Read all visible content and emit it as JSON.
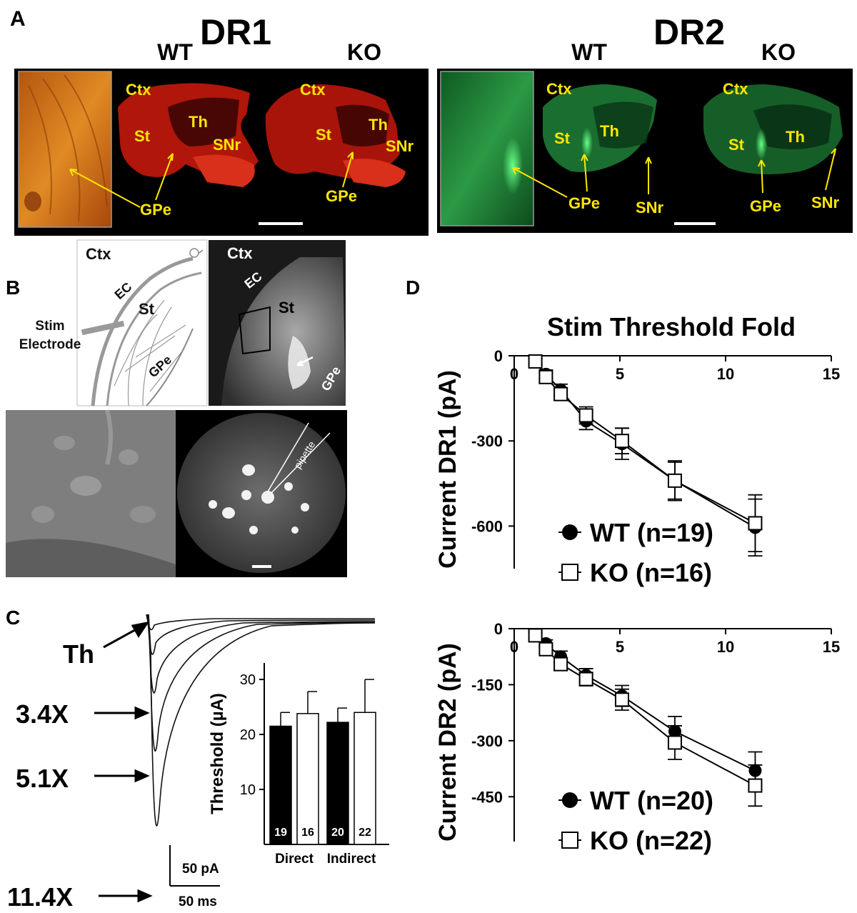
{
  "panelA": {
    "label": "A",
    "dr1": {
      "title": "DR1",
      "wt": "WT",
      "ko": "KO"
    },
    "dr2": {
      "title": "DR2",
      "wt": "WT",
      "ko": "KO"
    },
    "regions": {
      "ctx": "Ctx",
      "st": "St",
      "th": "Th",
      "snr": "SNr",
      "gpe": "GPe"
    },
    "colors": {
      "dr1_tissue": "#c81b0e",
      "dr1_inset": "#d8761c",
      "dr2_tissue": "#1f8f3c",
      "dr2_inset": "#2aa04a",
      "annotation": "#ffe600"
    }
  },
  "panelB": {
    "label": "B",
    "schematic": {
      "ctx": "Ctx",
      "ec": "EC",
      "st": "St",
      "gpe": "GPe",
      "stim1": "Stim",
      "stim2": "Electrode"
    },
    "fluor": {
      "ctx": "Ctx",
      "ec": "EC",
      "st": "St",
      "gpe": "GPe"
    },
    "pipette": "pipette"
  },
  "panelC": {
    "label": "C",
    "trace_labels": [
      "Th",
      "3.4X",
      "5.1X",
      "11.4X"
    ],
    "inset_chart": {
      "type": "bar",
      "ylabel": "Threshold  (µA)",
      "ylim": [
        0,
        33
      ],
      "yticks": [
        10,
        20,
        30
      ],
      "groups": [
        "Direct",
        "Indirect"
      ],
      "bars": [
        {
          "group": "Direct",
          "genotype": "WT",
          "value": 21.5,
          "error": 2.5,
          "n": "19",
          "fill": "#000000"
        },
        {
          "group": "Direct",
          "genotype": "KO",
          "value": 23.8,
          "error": 4.0,
          "n": "16",
          "fill": "#ffffff"
        },
        {
          "group": "Indirect",
          "genotype": "WT",
          "value": 22.2,
          "error": 2.6,
          "n": "20",
          "fill": "#000000"
        },
        {
          "group": "Indirect",
          "genotype": "KO",
          "value": 24.0,
          "error": 6.0,
          "n": "22",
          "fill": "#ffffff"
        }
      ]
    },
    "scale": {
      "current": "50 pA",
      "time": "50 ms"
    }
  },
  "panelD": {
    "label": "D",
    "xaxis_title": "Stim Threshold Fold",
    "chart_data": [
      {
        "type": "line",
        "ylabel": "Current DR1 (pA)",
        "xticks": [
          0,
          5,
          10,
          15
        ],
        "yticks": [
          0,
          -300,
          -600
        ],
        "xlim": [
          0,
          15
        ],
        "ylim": [
          -750,
          0
        ],
        "x": [
          1,
          1.5,
          2.2,
          3.4,
          5.1,
          7.6,
          11.4
        ],
        "series": [
          {
            "name": "WT (n=19)",
            "marker": "filled-circle",
            "values": [
              -20,
              -65,
              -120,
              -230,
              -310,
              -440,
              -605
            ],
            "errors": [
              10,
              15,
              20,
              30,
              55,
              70,
              100
            ]
          },
          {
            "name": "KO (n=16)",
            "marker": "open-square",
            "values": [
              -20,
              -75,
              -135,
              -210,
              -300,
              -440,
              -590
            ],
            "errors": [
              10,
              15,
              20,
              30,
              45,
              65,
              100
            ]
          }
        ]
      },
      {
        "type": "line",
        "ylabel": "Current DR2 (pA)",
        "xticks": [
          0,
          5,
          10,
          15
        ],
        "yticks": [
          0,
          -150,
          -300,
          -450
        ],
        "xlim": [
          0,
          15
        ],
        "ylim": [
          -570,
          0
        ],
        "x": [
          1,
          1.5,
          2.2,
          3.4,
          5.1,
          7.6,
          11.4
        ],
        "series": [
          {
            "name": "WT (n=20)",
            "marker": "filled-circle",
            "values": [
              -18,
              -40,
              -75,
              -125,
              -180,
              -275,
              -380
            ],
            "errors": [
              8,
              10,
              15,
              18,
              28,
              40,
              50
            ]
          },
          {
            "name": "KO  (n=22)",
            "marker": "open-square",
            "values": [
              -18,
              -55,
              -95,
              -135,
              -190,
              -305,
              -420
            ],
            "errors": [
              8,
              10,
              15,
              18,
              28,
              45,
              55
            ]
          }
        ]
      }
    ]
  }
}
